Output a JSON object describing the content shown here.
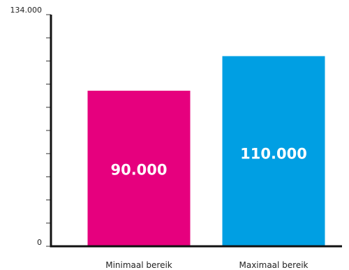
{
  "chart_data": {
    "type": "bar",
    "categories": [
      "Minimaal bereik",
      "Maximaal bereik"
    ],
    "values": [
      90000,
      110000
    ],
    "value_labels": [
      "90.000",
      "110.000"
    ],
    "colors": [
      "#e6007e",
      "#009fe3"
    ],
    "ylim": [
      0,
      134000
    ],
    "y_tick_labels": [
      "0",
      "134.000"
    ],
    "minor_tick_count": 11,
    "grid": false,
    "title": "",
    "xlabel": "",
    "ylabel": "",
    "axis_color": "#111111"
  }
}
